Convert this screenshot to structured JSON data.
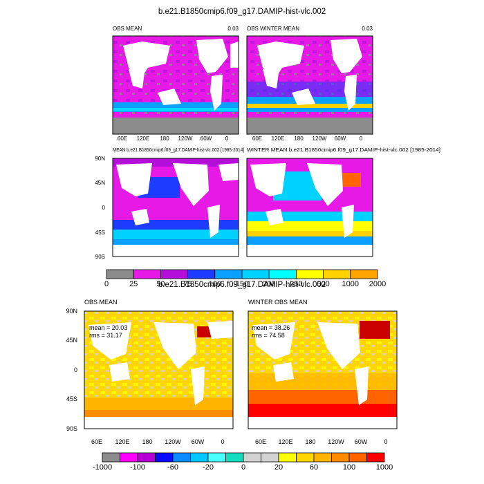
{
  "title": "b.e21.B1850cmip6.f09_g17.DAMIP-hist-vlc.002",
  "palette_top": [
    "#8c8c8c",
    "#e619e6",
    "#b40fd9",
    "#1e3cff",
    "#0aa0ff",
    "#00d2ff",
    "#00ffff",
    "#ffff00",
    "#ffd200",
    "#ffa500",
    "#ff6400",
    "#ff0000",
    "#c80000"
  ],
  "palette_bottom": [
    "#8c8c8c",
    "#ff00ff",
    "#b400d2",
    "#0a0aff",
    "#0a8cff",
    "#00c8ff",
    "#4bffff",
    "#14dcbe",
    "#d2d2d2",
    "#d2d2d2",
    "#ffff00",
    "#ffd700",
    "#ffb400",
    "#ff8c00",
    "#ff6400",
    "#ff0000",
    "#c80000"
  ],
  "chart_data": [
    {
      "type": "heatmap",
      "panel": "top-left",
      "label_left": "OBS MEAN",
      "label_right": "0.03",
      "xticks": [
        "60E",
        "120E",
        "180",
        "120W",
        "60W",
        "0"
      ],
      "yticks": []
    },
    {
      "type": "heatmap",
      "panel": "top-right",
      "label_left": "OBS WINTER MEAN",
      "label_right": "0.03",
      "xticks": [
        "60E",
        "120E",
        "180",
        "120W",
        "60W",
        "0"
      ],
      "yticks": []
    },
    {
      "type": "heatmap",
      "panel": "middle-left",
      "label_left": "MEAN b.e21.B1850cmip6.f09_g17.DAMIP-hist-vlc.002 [1985-2014]",
      "label_right": "",
      "xticks": [],
      "yticks": [
        "90N",
        "45N",
        "0",
        "45S",
        "90S"
      ]
    },
    {
      "type": "heatmap",
      "panel": "middle-right",
      "label_left": "WINTER MEAN b.e21.B1850cmip6.f09_g17.DAMIP-hist-vlc.002 [1985-2014]",
      "label_right": "",
      "xticks": [],
      "yticks": []
    },
    {
      "type": "colorbar",
      "panel": "colorbar-top",
      "tick_labels": [
        "0",
        "25",
        "50",
        "75",
        "100",
        "150",
        "200",
        "250",
        "500",
        "1000",
        "2000"
      ]
    },
    {
      "type": "heatmap",
      "panel": "bottom-left",
      "title": "b.e21.B1850cmip6.f09_g17.DAMIP-hist-vlc.002",
      "label_left": "OBS MEAN",
      "stats": [
        "mean = 20.03",
        "rms = 31.17"
      ],
      "xticks": [
        "60E",
        "120E",
        "180",
        "120W",
        "60W",
        "0"
      ],
      "yticks": [
        "90N",
        "45N",
        "0",
        "45S",
        "90S"
      ]
    },
    {
      "type": "heatmap",
      "panel": "bottom-right",
      "label_left": "WINTER OBS MEAN",
      "stats": [
        "mean = 38.26",
        "rms = 74.58"
      ],
      "xticks": [
        "60E",
        "120E",
        "180",
        "120W",
        "60W",
        "0"
      ],
      "yticks": []
    },
    {
      "type": "colorbar",
      "panel": "colorbar-bottom",
      "tick_labels": [
        "-1000",
        "-100",
        "-60",
        "-20",
        "0",
        "20",
        "60",
        "100",
        "1000"
      ]
    }
  ]
}
